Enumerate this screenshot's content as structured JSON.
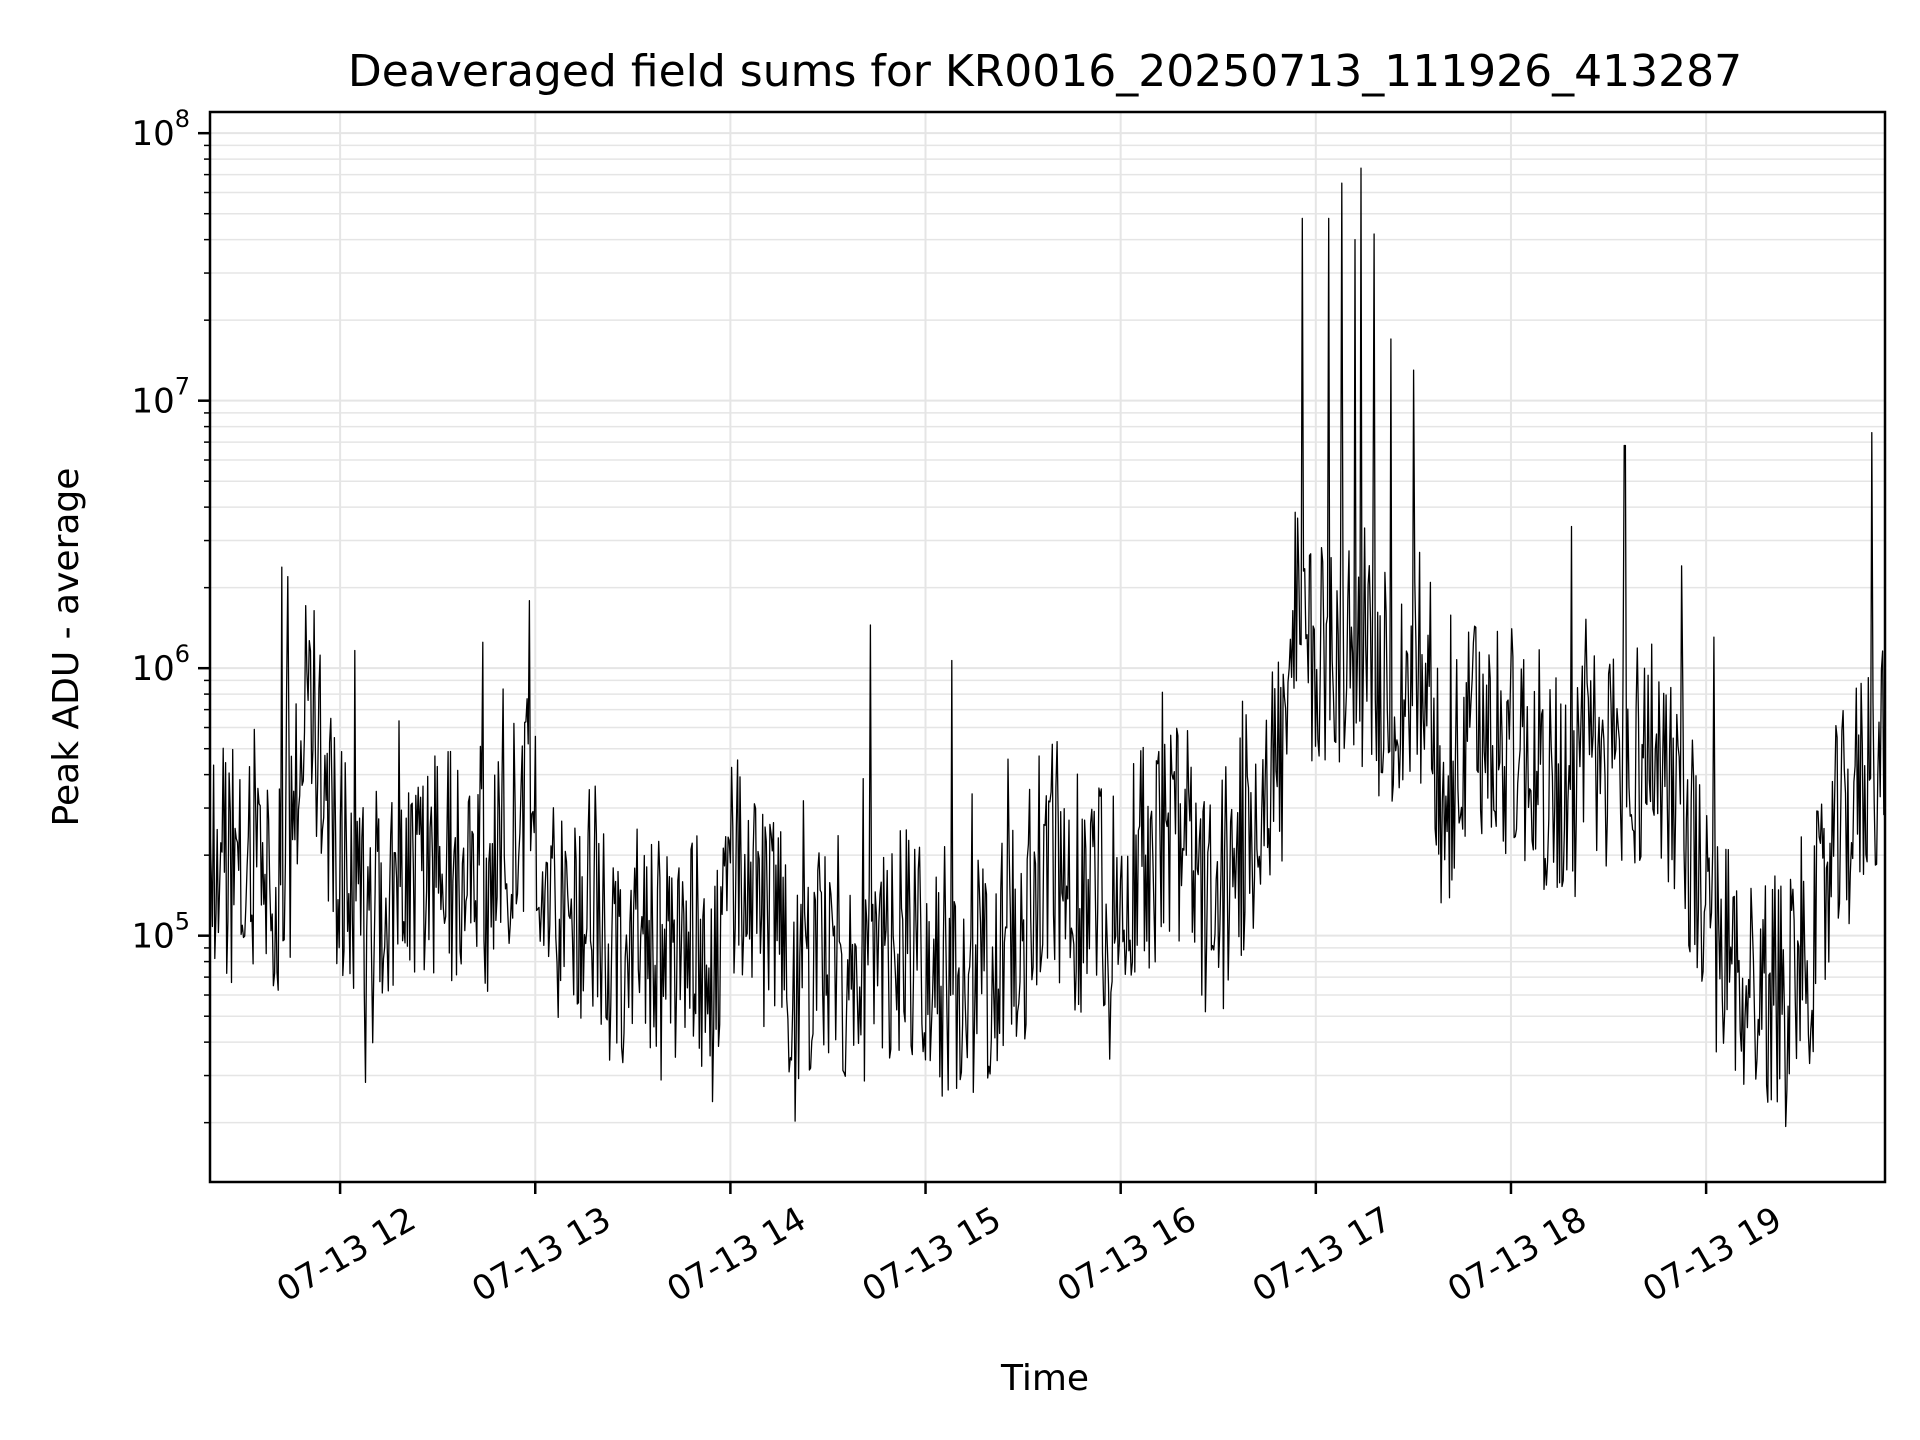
{
  "chart_data": {
    "type": "line",
    "title": "Deaveraged field sums for KR0016_20250713_111926_413287",
    "xlabel": "Time",
    "ylabel": "Peak ADU - average",
    "y_scale": "log",
    "ylim": [
      12000,
      120000000
    ],
    "xlim": [
      "2025-07-13 11:20",
      "2025-07-13 19:55"
    ],
    "grid": true,
    "line_color": "#000000",
    "grid_color": "#e5e5e5",
    "y_ticks": [
      {
        "value": 100000,
        "base": "10",
        "exp": "5"
      },
      {
        "value": 1000000,
        "base": "10",
        "exp": "6"
      },
      {
        "value": 10000000,
        "base": "10",
        "exp": "7"
      },
      {
        "value": 100000000,
        "base": "10",
        "exp": "8"
      }
    ],
    "x_ticks": [
      {
        "time": "2025-07-13 12:00",
        "label": "07-13 12"
      },
      {
        "time": "2025-07-13 13:00",
        "label": "07-13 13"
      },
      {
        "time": "2025-07-13 14:00",
        "label": "07-13 14"
      },
      {
        "time": "2025-07-13 15:00",
        "label": "07-13 15"
      },
      {
        "time": "2025-07-13 16:00",
        "label": "07-13 16"
      },
      {
        "time": "2025-07-13 17:00",
        "label": "07-13 17"
      },
      {
        "time": "2025-07-13 18:00",
        "label": "07-13 18"
      },
      {
        "time": "2025-07-13 19:00",
        "label": "07-13 19"
      }
    ],
    "series": [
      {
        "x": [
          "11:20",
          "11:25",
          "11:30",
          "11:35",
          "11:40",
          "11:45",
          "11:50",
          "11:55",
          "12:00",
          "12:05",
          "12:10",
          "12:15",
          "12:20",
          "12:25",
          "12:30",
          "12:35",
          "12:40",
          "12:45",
          "12:50",
          "12:55",
          "13:00",
          "13:05",
          "13:10",
          "13:15",
          "13:20",
          "13:25",
          "13:30",
          "13:35",
          "13:40",
          "13:45",
          "13:50",
          "13:55",
          "14:00",
          "14:05",
          "14:10",
          "14:15",
          "14:20",
          "14:25",
          "14:30",
          "14:35",
          "14:40",
          "14:45",
          "14:50",
          "14:55",
          "15:00",
          "15:05",
          "15:10",
          "15:15",
          "15:20",
          "15:25",
          "15:30",
          "15:35",
          "15:40",
          "15:45",
          "15:50",
          "15:55",
          "16:00",
          "16:05",
          "16:10",
          "16:15",
          "16:20",
          "16:25",
          "16:30",
          "16:35",
          "16:40",
          "16:45",
          "16:50",
          "16:55",
          "17:00",
          "17:05",
          "17:10",
          "17:15",
          "17:20",
          "17:25",
          "17:30",
          "17:35",
          "17:40",
          "17:45",
          "17:50",
          "17:55",
          "18:00",
          "18:05",
          "18:10",
          "18:15",
          "18:20",
          "18:25",
          "18:30",
          "18:35",
          "18:40",
          "18:45",
          "18:50",
          "18:55",
          "19:00",
          "19:05",
          "19:10",
          "19:15",
          "19:20",
          "19:25",
          "19:30",
          "19:35",
          "19:40",
          "19:45",
          "19:50",
          "19:55"
        ],
        "y": [
          180000,
          200000,
          150000,
          250000,
          130000,
          220000,
          1100000,
          300000,
          180000,
          120000,
          160000,
          130000,
          200000,
          150000,
          210000,
          180000,
          230000,
          160000,
          190000,
          280000,
          310000,
          150000,
          110000,
          140000,
          100000,
          90000,
          85000,
          110000,
          70000,
          95000,
          85000,
          60000,
          150000,
          200000,
          110000,
          90000,
          80000,
          75000,
          95000,
          85000,
          70000,
          65000,
          90000,
          100000,
          70000,
          60000,
          75000,
          70000,
          80000,
          95000,
          110000,
          160000,
          200000,
          150000,
          130000,
          140000,
          180000,
          210000,
          170000,
          250000,
          220000,
          130000,
          120000,
          200000,
          260000,
          400000,
          480000,
          1500000,
          900000,
          1300000,
          1100000,
          1200000,
          900000,
          700000,
          1000000,
          950000,
          250000,
          500000,
          550000,
          600000,
          520000,
          480000,
          400000,
          350000,
          380000,
          420000,
          450000,
          500000,
          480000,
          520000,
          380000,
          240000,
          110000,
          90000,
          70000,
          65000,
          60000,
          75000,
          85000,
          110000,
          220000,
          300000,
          430000,
          520000
        ]
      }
    ],
    "spikes": [
      {
        "x": "11:44",
        "y": 2200000
      },
      {
        "x": "12:44",
        "y": 1250000
      },
      {
        "x": "14:43",
        "y": 1450000
      },
      {
        "x": "16:56",
        "y": 48000000
      },
      {
        "x": "17:04",
        "y": 48000000
      },
      {
        "x": "17:08",
        "y": 65000000
      },
      {
        "x": "17:12",
        "y": 40000000
      },
      {
        "x": "17:14",
        "y": 74000000
      },
      {
        "x": "17:18",
        "y": 42000000
      },
      {
        "x": "17:23",
        "y": 17000000
      },
      {
        "x": "17:30",
        "y": 13000000
      },
      {
        "x": "18:35",
        "y": 6800000
      },
      {
        "x": "19:51",
        "y": 7600000
      }
    ]
  }
}
